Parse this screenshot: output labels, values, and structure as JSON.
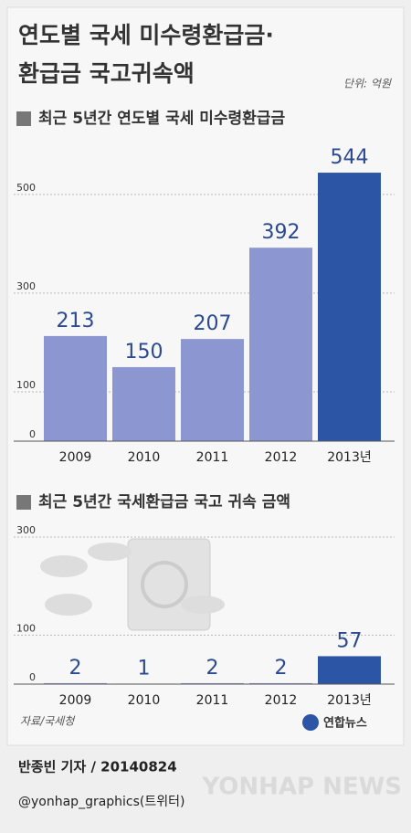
{
  "header": {
    "title_lines": [
      "연도별 국세 미수령환급금·",
      "환급금 국고귀속액"
    ],
    "unit": "단위: 억원"
  },
  "chart_data": [
    {
      "type": "bar",
      "title": "최근 5년간 연도별 국세 미수령환급금",
      "categories": [
        "2009",
        "2010",
        "2011",
        "2012",
        "2013년"
      ],
      "values": [
        213,
        150,
        207,
        392,
        544
      ],
      "colors": [
        "#8c97d2",
        "#8c97d2",
        "#8c97d2",
        "#8c97d2",
        "#2d55a6"
      ],
      "ylim": [
        0,
        570
      ],
      "yticks": [
        0,
        100,
        300,
        500
      ],
      "grid": true
    },
    {
      "type": "bar",
      "title": "최근 5년간 국세환급금 국고 귀속 금액",
      "categories": [
        "2009",
        "2010",
        "2011",
        "2012",
        "2013년"
      ],
      "values": [
        2,
        1,
        2,
        2,
        57
      ],
      "colors": [
        "#8c97d2",
        "#8c97d2",
        "#8c97d2",
        "#8c97d2",
        "#2d55a6"
      ],
      "ylim": [
        0,
        315
      ],
      "yticks": [
        0,
        100,
        300
      ],
      "grid": true
    }
  ],
  "footer": {
    "source": "자료/국세청",
    "logo": "연합뉴스",
    "credit": "반종빈 기자 / 20140824",
    "twitter": "@yonhap_graphics(트위터)",
    "watermark": "YONHAP NEWS"
  }
}
